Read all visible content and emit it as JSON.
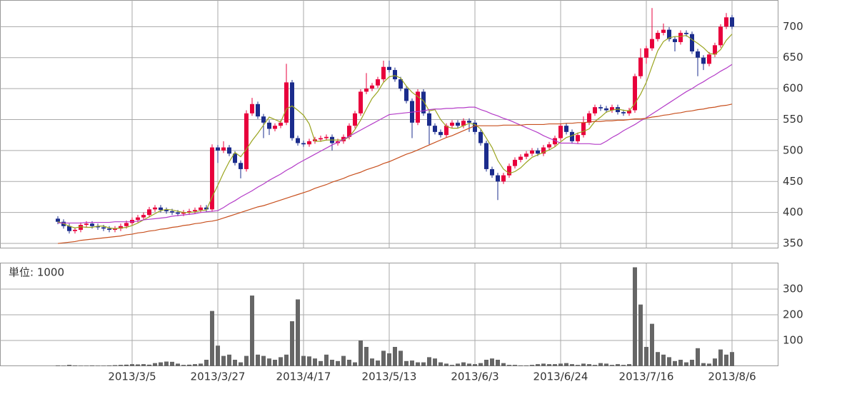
{
  "chart_data": {
    "type": "candlestick",
    "categories": [
      null,
      null,
      null,
      null,
      null,
      null,
      null,
      null,
      null,
      null,
      null,
      null,
      null,
      "2013/3/5",
      null,
      null,
      null,
      null,
      null,
      null,
      null,
      null,
      null,
      null,
      null,
      null,
      null,
      null,
      "2013/3/27",
      null,
      null,
      null,
      null,
      null,
      null,
      null,
      null,
      null,
      null,
      null,
      null,
      null,
      null,
      "2013/4/17",
      null,
      null,
      null,
      null,
      null,
      null,
      null,
      null,
      null,
      null,
      null,
      null,
      null,
      null,
      "2013/5/13",
      null,
      null,
      null,
      null,
      null,
      null,
      null,
      null,
      null,
      null,
      null,
      null,
      null,
      null,
      "2013/6/3",
      null,
      null,
      null,
      null,
      null,
      null,
      null,
      null,
      null,
      null,
      null,
      null,
      null,
      null,
      "2013/6/24",
      null,
      null,
      null,
      null,
      null,
      null,
      null,
      null,
      null,
      null,
      null,
      null,
      null,
      null,
      "2013/7/16",
      null,
      null,
      null,
      null,
      null,
      null,
      null,
      null,
      null,
      null,
      null,
      null,
      null,
      null,
      "2013/8/6"
    ],
    "open": [
      390,
      385,
      378,
      370,
      372,
      380,
      382,
      378,
      376,
      374,
      372,
      374,
      378,
      383,
      388,
      392,
      396,
      405,
      408,
      404,
      402,
      400,
      398,
      400,
      402,
      404,
      408,
      405,
      505,
      500,
      505,
      495,
      480,
      470,
      560,
      575,
      555,
      545,
      535,
      540,
      545,
      610,
      520,
      512,
      510,
      515,
      518,
      520,
      522,
      512,
      515,
      522,
      540,
      560,
      595,
      600,
      605,
      615,
      635,
      630,
      615,
      600,
      580,
      545,
      595,
      560,
      540,
      530,
      525,
      540,
      545,
      540,
      548,
      545,
      530,
      512,
      470,
      460,
      450,
      460,
      475,
      485,
      490,
      495,
      500,
      495,
      505,
      510,
      520,
      540,
      530,
      515,
      525,
      545,
      560,
      570,
      568,
      565,
      570,
      562,
      560,
      565,
      620,
      650,
      665,
      680,
      690,
      695,
      680,
      675,
      690,
      688,
      660,
      650,
      640,
      655,
      670,
      700,
      715
    ],
    "high": [
      394,
      389,
      382,
      376,
      384,
      386,
      386,
      382,
      380,
      378,
      378,
      382,
      387,
      392,
      396,
      400,
      409,
      412,
      412,
      408,
      406,
      404,
      404,
      406,
      408,
      412,
      412,
      510,
      509,
      515,
      509,
      499,
      484,
      565,
      585,
      579,
      559,
      549,
      544,
      549,
      640,
      614,
      524,
      516,
      519,
      522,
      524,
      526,
      526,
      519,
      526,
      544,
      564,
      599,
      625,
      609,
      619,
      645,
      645,
      634,
      619,
      604,
      584,
      599,
      599,
      564,
      544,
      534,
      544,
      549,
      549,
      552,
      552,
      549,
      534,
      516,
      474,
      464,
      464,
      479,
      489,
      494,
      499,
      504,
      504,
      509,
      514,
      524,
      544,
      544,
      534,
      529,
      555,
      564,
      574,
      574,
      572,
      574,
      574,
      566,
      569,
      624,
      665,
      669,
      730,
      694,
      705,
      699,
      684,
      694,
      694,
      692,
      664,
      654,
      659,
      674,
      704,
      722,
      719
    ],
    "low": [
      381,
      374,
      366,
      366,
      368,
      376,
      374,
      372,
      370,
      368,
      368,
      370,
      374,
      379,
      384,
      388,
      392,
      401,
      400,
      398,
      396,
      394,
      394,
      396,
      398,
      400,
      401,
      401,
      480,
      496,
      491,
      476,
      455,
      466,
      556,
      551,
      520,
      525,
      531,
      536,
      541,
      516,
      508,
      506,
      506,
      511,
      514,
      516,
      500,
      508,
      511,
      518,
      536,
      556,
      591,
      596,
      601,
      611,
      626,
      611,
      596,
      576,
      520,
      541,
      556,
      510,
      526,
      521,
      521,
      536,
      536,
      536,
      530,
      526,
      508,
      466,
      456,
      420,
      446,
      456,
      471,
      481,
      486,
      491,
      491,
      491,
      501,
      506,
      516,
      526,
      511,
      511,
      521,
      541,
      556,
      564,
      561,
      561,
      558,
      556,
      556,
      561,
      616,
      640,
      661,
      676,
      686,
      676,
      660,
      671,
      684,
      656,
      620,
      630,
      636,
      651,
      666,
      696,
      696
    ],
    "close": [
      385,
      378,
      370,
      372,
      380,
      382,
      378,
      376,
      374,
      372,
      374,
      378,
      383,
      388,
      392,
      396,
      405,
      408,
      404,
      402,
      400,
      398,
      400,
      402,
      404,
      408,
      405,
      505,
      500,
      505,
      495,
      480,
      470,
      560,
      575,
      555,
      545,
      535,
      540,
      545,
      610,
      520,
      512,
      510,
      515,
      518,
      520,
      522,
      512,
      515,
      522,
      540,
      560,
      595,
      600,
      605,
      615,
      635,
      630,
      615,
      600,
      580,
      545,
      595,
      560,
      540,
      530,
      525,
      540,
      545,
      540,
      548,
      545,
      530,
      512,
      470,
      460,
      450,
      460,
      475,
      485,
      490,
      495,
      500,
      495,
      505,
      510,
      520,
      540,
      530,
      515,
      525,
      545,
      560,
      570,
      568,
      565,
      570,
      562,
      560,
      565,
      620,
      650,
      665,
      680,
      690,
      695,
      680,
      675,
      690,
      688,
      660,
      650,
      640,
      655,
      670,
      700,
      715,
      700
    ],
    "volume": [
      3,
      2,
      5,
      3,
      2,
      2,
      3,
      2,
      2,
      3,
      4,
      5,
      6,
      8,
      7,
      8,
      6,
      12,
      15,
      18,
      17,
      10,
      5,
      6,
      8,
      10,
      25,
      215,
      80,
      40,
      45,
      25,
      15,
      40,
      275,
      45,
      40,
      30,
      25,
      35,
      45,
      175,
      260,
      40,
      38,
      30,
      20,
      45,
      25,
      20,
      40,
      25,
      15,
      100,
      75,
      30,
      22,
      60,
      50,
      75,
      60,
      20,
      22,
      15,
      15,
      35,
      30,
      15,
      10,
      5,
      10,
      15,
      10,
      8,
      12,
      25,
      30,
      25,
      12,
      5,
      5,
      3,
      3,
      5,
      8,
      10,
      8,
      8,
      10,
      12,
      8,
      5,
      10,
      8,
      5,
      12,
      10,
      5,
      8,
      5,
      8,
      385,
      240,
      75,
      165,
      55,
      45,
      35,
      20,
      25,
      15,
      25,
      70,
      12,
      10,
      30,
      65,
      45,
      55
    ],
    "series": [
      {
        "color": "#9aa41e",
        "values": [
          385,
          382,
          378,
          375,
          377,
          376,
          376,
          378,
          378,
          375,
          374,
          375,
          376,
          379,
          383,
          388,
          393,
          398,
          403,
          405,
          404,
          402,
          400,
          400,
          401,
          403,
          404,
          425,
          444,
          464,
          482,
          497,
          490,
          502,
          516,
          528,
          541,
          554,
          550,
          546,
          567,
          572,
          565,
          557,
          543,
          515,
          515,
          517,
          517,
          517,
          517,
          522,
          534,
          549,
          567,
          584,
          595,
          610,
          619,
          621,
          617,
          604,
          594,
          587,
          580,
          564,
          566,
          550,
          539,
          536,
          536,
          540,
          544,
          542,
          535,
          520,
          505,
          484,
          470,
          463,
          466,
          472,
          481,
          489,
          493,
          497,
          501,
          506,
          514,
          521,
          524,
          528,
          531,
          535,
          547,
          554,
          562,
          565,
          567,
          565,
          564,
          576,
          591,
          610,
          636,
          661,
          676,
          682,
          684,
          684,
          686,
          679,
          673,
          666,
          657,
          655,
          663,
          678,
          688
        ]
      },
      {
        "color": "#b43cc8",
        "values": [
          383,
          383,
          383,
          383,
          383,
          384,
          384,
          384,
          384,
          384,
          385,
          385,
          385,
          385,
          386,
          388,
          389,
          390,
          391,
          392,
          394,
          395,
          396,
          397,
          398,
          400,
          401,
          402,
          403,
          408,
          414,
          419,
          425,
          430,
          435,
          441,
          446,
          452,
          457,
          462,
          468,
          473,
          479,
          484,
          489,
          494,
          499,
          504,
          509,
          513,
          518,
          523,
          528,
          533,
          538,
          543,
          548,
          553,
          558,
          559,
          560,
          561,
          562,
          563,
          564,
          566,
          567,
          567,
          568,
          568,
          569,
          569,
          570,
          570,
          566,
          563,
          559,
          556,
          552,
          549,
          545,
          541,
          537,
          533,
          529,
          524,
          520,
          516,
          512,
          512,
          512,
          511,
          511,
          511,
          510,
          510,
          515,
          521,
          526,
          532,
          537,
          542,
          548,
          553,
          559,
          565,
          571,
          577,
          583,
          589,
          595,
          600,
          606,
          611,
          617,
          622,
          628,
          633,
          639
        ]
      },
      {
        "color": "#c8501e",
        "values": [
          350,
          351,
          352,
          353,
          355,
          356,
          357,
          358,
          359,
          360,
          361,
          362,
          364,
          365,
          367,
          368,
          370,
          371,
          373,
          374,
          376,
          377,
          379,
          380,
          382,
          383,
          385,
          386,
          388,
          391,
          394,
          397,
          400,
          403,
          406,
          409,
          411,
          414,
          417,
          420,
          423,
          426,
          429,
          432,
          435,
          439,
          442,
          445,
          449,
          452,
          455,
          459,
          462,
          465,
          469,
          472,
          475,
          479,
          482,
          486,
          490,
          494,
          497,
          501,
          505,
          509,
          513,
          517,
          521,
          524,
          528,
          532,
          536,
          540,
          540,
          540,
          540,
          540,
          541,
          541,
          541,
          541,
          542,
          542,
          542,
          542,
          543,
          543,
          543,
          544,
          544,
          545,
          545,
          546,
          547,
          547,
          548,
          548,
          549,
          549,
          550,
          551,
          551,
          552,
          554,
          555,
          557,
          558,
          560,
          561,
          563,
          564,
          566,
          567,
          569,
          570,
          572,
          573,
          575
        ]
      }
    ],
    "up_color": "#e8003c",
    "down_color": "#1b2c8c",
    "volume_color": "#666666",
    "ylim": [
      342,
      743
    ],
    "yticks": [
      350,
      400,
      450,
      500,
      550,
      600,
      650,
      700
    ],
    "volume_unit": "単位: 1000",
    "volume_ylim": [
      0,
      403
    ],
    "volume_yticks": [
      100,
      200,
      300
    ],
    "grid": true
  }
}
